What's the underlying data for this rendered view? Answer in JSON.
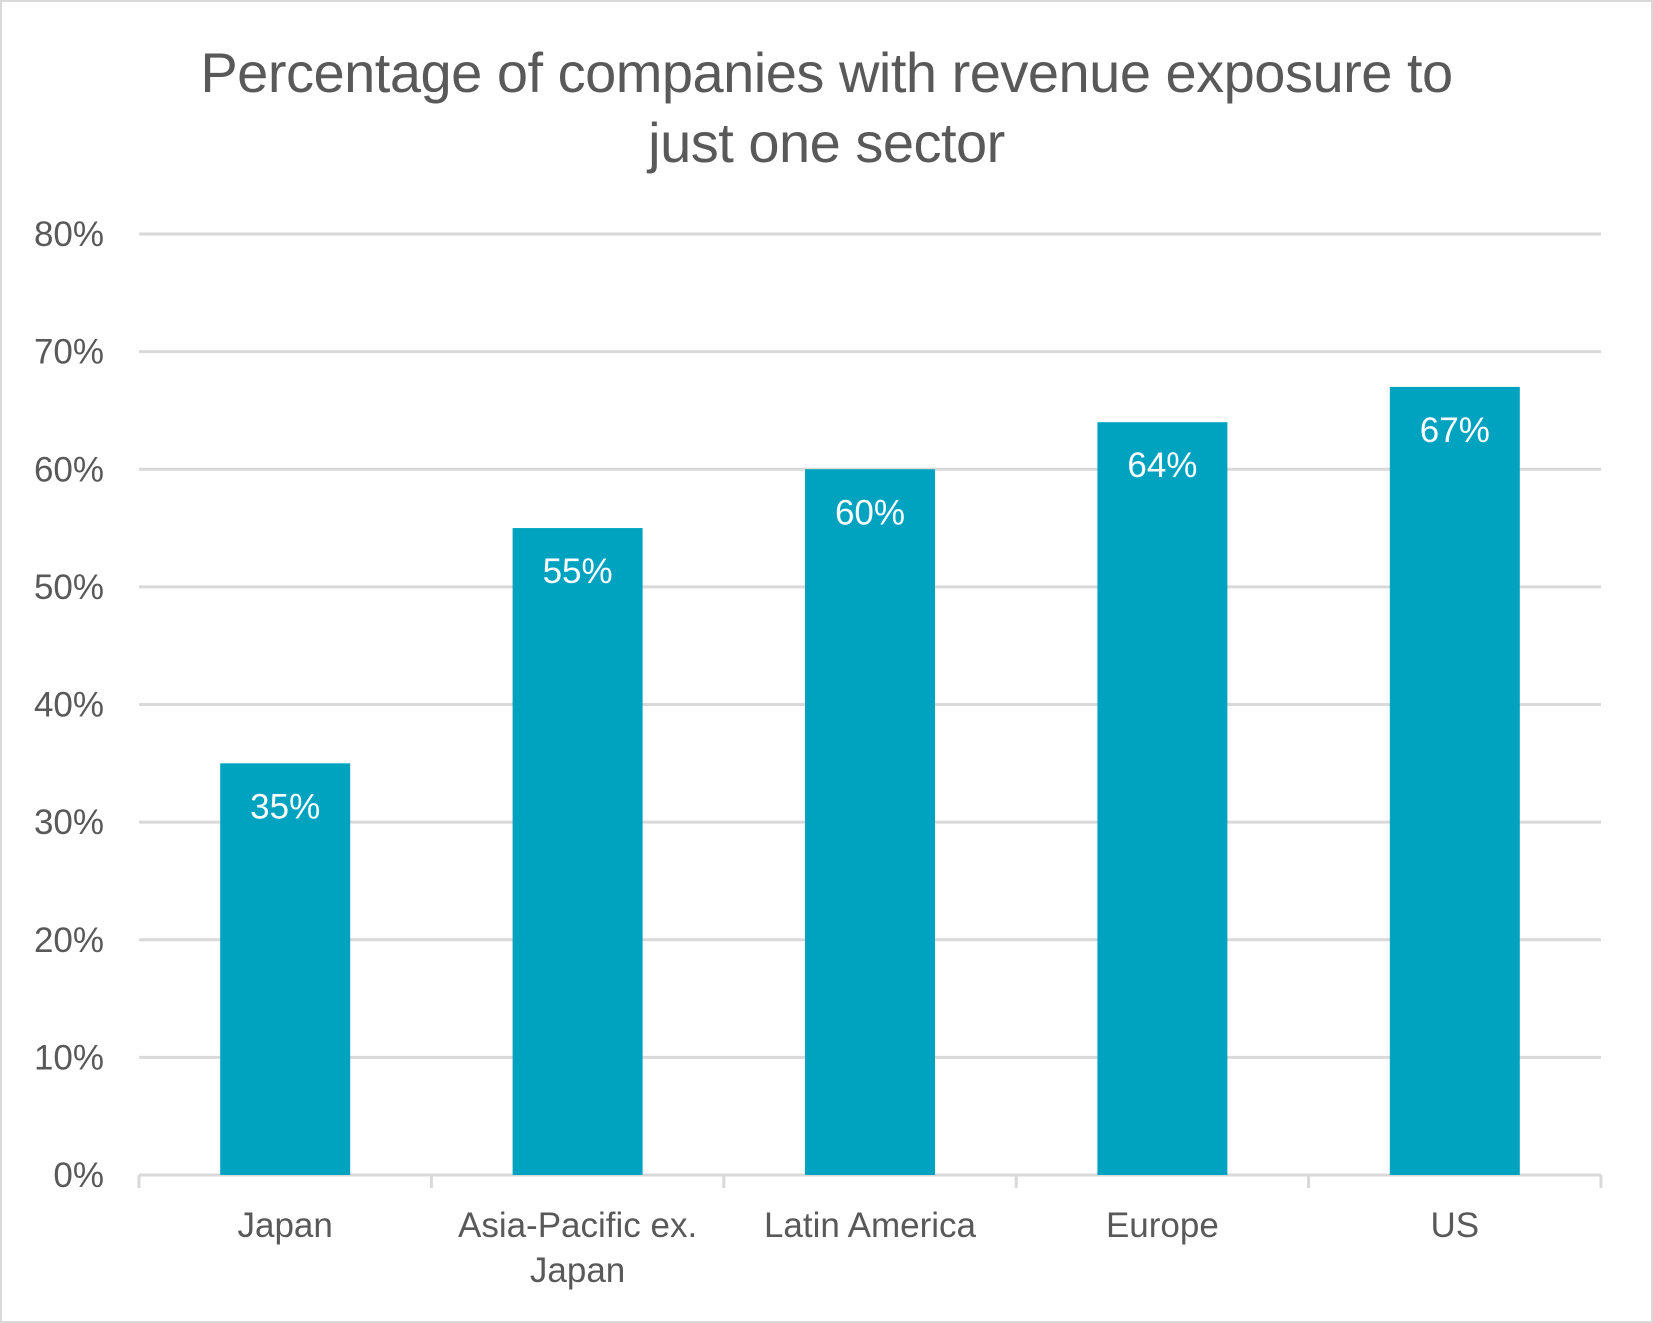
{
  "chart_data": {
    "type": "bar",
    "title": [
      "Percentage of companies with revenue exposure to",
      "just one sector"
    ],
    "categories": [
      [
        "Japan"
      ],
      [
        "Asia-Pacific ex.",
        "Japan"
      ],
      [
        "Latin America"
      ],
      [
        "Europe"
      ],
      [
        "US"
      ]
    ],
    "values": [
      35,
      55,
      60,
      64,
      67
    ],
    "data_labels": [
      "35%",
      "55%",
      "60%",
      "64%",
      "67%"
    ],
    "ylim": [
      0,
      80
    ],
    "yticks": [
      0,
      10,
      20,
      30,
      40,
      50,
      60,
      70,
      80
    ],
    "ytick_labels": [
      "0%",
      "10%",
      "20%",
      "30%",
      "40%",
      "50%",
      "60%",
      "70%",
      "80%"
    ],
    "grid": true,
    "legend": "none",
    "colors": {
      "bar": "#00A3BF",
      "grid": "#d9d9d9",
      "text": "#595959",
      "data_label": "#ffffff"
    }
  }
}
